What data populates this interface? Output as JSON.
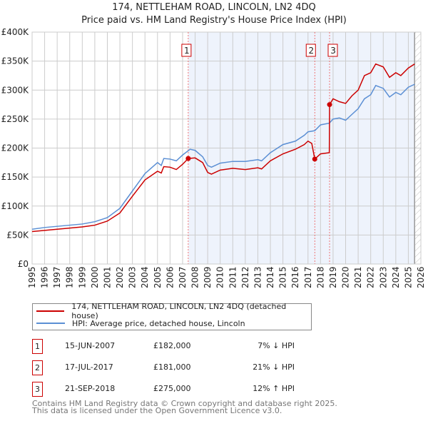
{
  "header": {
    "title": "174, NETTLEHAM ROAD, LINCOLN, LN2 4DQ",
    "subtitle": "Price paid vs. HM Land Registry's House Price Index (HPI)"
  },
  "colors": {
    "property": "#cc0000",
    "hpi": "#5b8fd4",
    "shade": "#eef3fc"
  },
  "chart_data": {
    "type": "line",
    "title": "174, NETTLEHAM ROAD, LINCOLN, LN2 4DQ — Price paid vs. HM Land Registry's House Price Index (HPI)",
    "xlim": [
      1995,
      2026
    ],
    "ylim": [
      0,
      400000
    ],
    "yticks": [
      {
        "v": 0,
        "label": "£0"
      },
      {
        "v": 50000,
        "label": "£50K"
      },
      {
        "v": 100000,
        "label": "£100K"
      },
      {
        "v": 150000,
        "label": "£150K"
      },
      {
        "v": 200000,
        "label": "£200K"
      },
      {
        "v": 250000,
        "label": "£250K"
      },
      {
        "v": 300000,
        "label": "£300K"
      },
      {
        "v": 350000,
        "label": "£350K"
      },
      {
        "v": 400000,
        "label": "£400K"
      }
    ],
    "xticks": [
      "1995",
      "1996",
      "1997",
      "1998",
      "1999",
      "2000",
      "2001",
      "2002",
      "2003",
      "2004",
      "2005",
      "2006",
      "2007",
      "2008",
      "2009",
      "2010",
      "2011",
      "2012",
      "2013",
      "2014",
      "2015",
      "2016",
      "2017",
      "2018",
      "2019",
      "2020",
      "2021",
      "2022",
      "2023",
      "2024",
      "2025",
      "2026"
    ],
    "grid": true,
    "shaded_range": [
      2007.45,
      2025.5
    ],
    "series": [
      {
        "name": "174, NETTLEHAM ROAD, LINCOLN, LN2 4DQ (detached house)",
        "color": "#cc0000",
        "points": [
          [
            1995,
            56000
          ],
          [
            1996,
            58000
          ],
          [
            1997,
            60000
          ],
          [
            1998,
            62000
          ],
          [
            1999,
            64000
          ],
          [
            2000,
            67000
          ],
          [
            2001,
            74000
          ],
          [
            2002,
            88000
          ],
          [
            2003,
            117000
          ],
          [
            2004,
            145000
          ],
          [
            2005,
            160000
          ],
          [
            2005.3,
            157000
          ],
          [
            2005.5,
            168000
          ],
          [
            2006,
            167000
          ],
          [
            2006.5,
            163000
          ],
          [
            2007,
            172000
          ],
          [
            2007.45,
            182000
          ],
          [
            2008,
            183000
          ],
          [
            2008.6,
            175000
          ],
          [
            2009,
            158000
          ],
          [
            2009.3,
            155000
          ],
          [
            2010,
            162000
          ],
          [
            2011,
            165000
          ],
          [
            2012,
            163000
          ],
          [
            2013,
            166000
          ],
          [
            2013.3,
            164000
          ],
          [
            2014,
            178000
          ],
          [
            2015,
            190000
          ],
          [
            2016,
            198000
          ],
          [
            2016.7,
            206000
          ],
          [
            2017,
            212000
          ],
          [
            2017.3,
            208000
          ],
          [
            2017.54,
            181000
          ],
          [
            2018,
            190000
          ],
          [
            2018.7,
            192000
          ],
          [
            2018.72,
            275000
          ],
          [
            2019,
            285000
          ],
          [
            2019.5,
            280000
          ],
          [
            2020,
            277000
          ],
          [
            2020.5,
            290000
          ],
          [
            2021,
            300000
          ],
          [
            2021.5,
            325000
          ],
          [
            2022,
            330000
          ],
          [
            2022.4,
            345000
          ],
          [
            2023,
            340000
          ],
          [
            2023.5,
            322000
          ],
          [
            2024,
            330000
          ],
          [
            2024.4,
            325000
          ],
          [
            2025,
            338000
          ],
          [
            2025.5,
            345000
          ]
        ]
      },
      {
        "name": "HPI: Average price, detached house, Lincoln",
        "color": "#5b8fd4",
        "points": [
          [
            1995,
            60000
          ],
          [
            1996,
            63000
          ],
          [
            1997,
            65000
          ],
          [
            1998,
            67000
          ],
          [
            1999,
            69000
          ],
          [
            2000,
            73000
          ],
          [
            2001,
            80000
          ],
          [
            2002,
            96000
          ],
          [
            2003,
            126000
          ],
          [
            2004,
            156000
          ],
          [
            2005,
            175000
          ],
          [
            2005.3,
            170000
          ],
          [
            2005.5,
            182000
          ],
          [
            2006,
            181000
          ],
          [
            2006.5,
            178000
          ],
          [
            2007,
            188000
          ],
          [
            2007.6,
            198000
          ],
          [
            2008,
            196000
          ],
          [
            2008.6,
            185000
          ],
          [
            2009,
            170000
          ],
          [
            2009.3,
            167000
          ],
          [
            2010,
            174000
          ],
          [
            2011,
            177000
          ],
          [
            2012,
            177000
          ],
          [
            2013,
            180000
          ],
          [
            2013.3,
            178000
          ],
          [
            2014,
            192000
          ],
          [
            2015,
            206000
          ],
          [
            2016,
            212000
          ],
          [
            2016.7,
            222000
          ],
          [
            2017,
            228000
          ],
          [
            2017.54,
            230000
          ],
          [
            2018,
            240000
          ],
          [
            2018.7,
            243000
          ],
          [
            2019,
            250000
          ],
          [
            2019.5,
            252000
          ],
          [
            2020,
            248000
          ],
          [
            2020.5,
            258000
          ],
          [
            2021,
            268000
          ],
          [
            2021.5,
            285000
          ],
          [
            2022,
            292000
          ],
          [
            2022.4,
            308000
          ],
          [
            2023,
            303000
          ],
          [
            2023.5,
            288000
          ],
          [
            2024,
            296000
          ],
          [
            2024.4,
            292000
          ],
          [
            2025,
            305000
          ],
          [
            2025.5,
            310000
          ]
        ]
      }
    ],
    "sales": [
      {
        "n": "1",
        "x": 2007.45,
        "y": 182000
      },
      {
        "n": "2",
        "x": 2017.54,
        "y": 181000
      },
      {
        "n": "3",
        "x": 2018.72,
        "y": 275000
      }
    ]
  },
  "legend": {
    "property": "174, NETTLEHAM ROAD, LINCOLN, LN2 4DQ (detached house)",
    "hpi": "HPI: Average price, detached house, Lincoln"
  },
  "transactions": [
    {
      "n": "1",
      "date": "15-JUN-2007",
      "price": "£182,000",
      "hpi": "7% ↓ HPI"
    },
    {
      "n": "2",
      "date": "17-JUL-2017",
      "price": "£181,000",
      "hpi": "21% ↓ HPI"
    },
    {
      "n": "3",
      "date": "21-SEP-2018",
      "price": "£275,000",
      "hpi": "12% ↑ HPI"
    }
  ],
  "footer": {
    "line1": "Contains HM Land Registry data © Crown copyright and database right 2025.",
    "line2": "This data is licensed under the Open Government Licence v3.0."
  }
}
